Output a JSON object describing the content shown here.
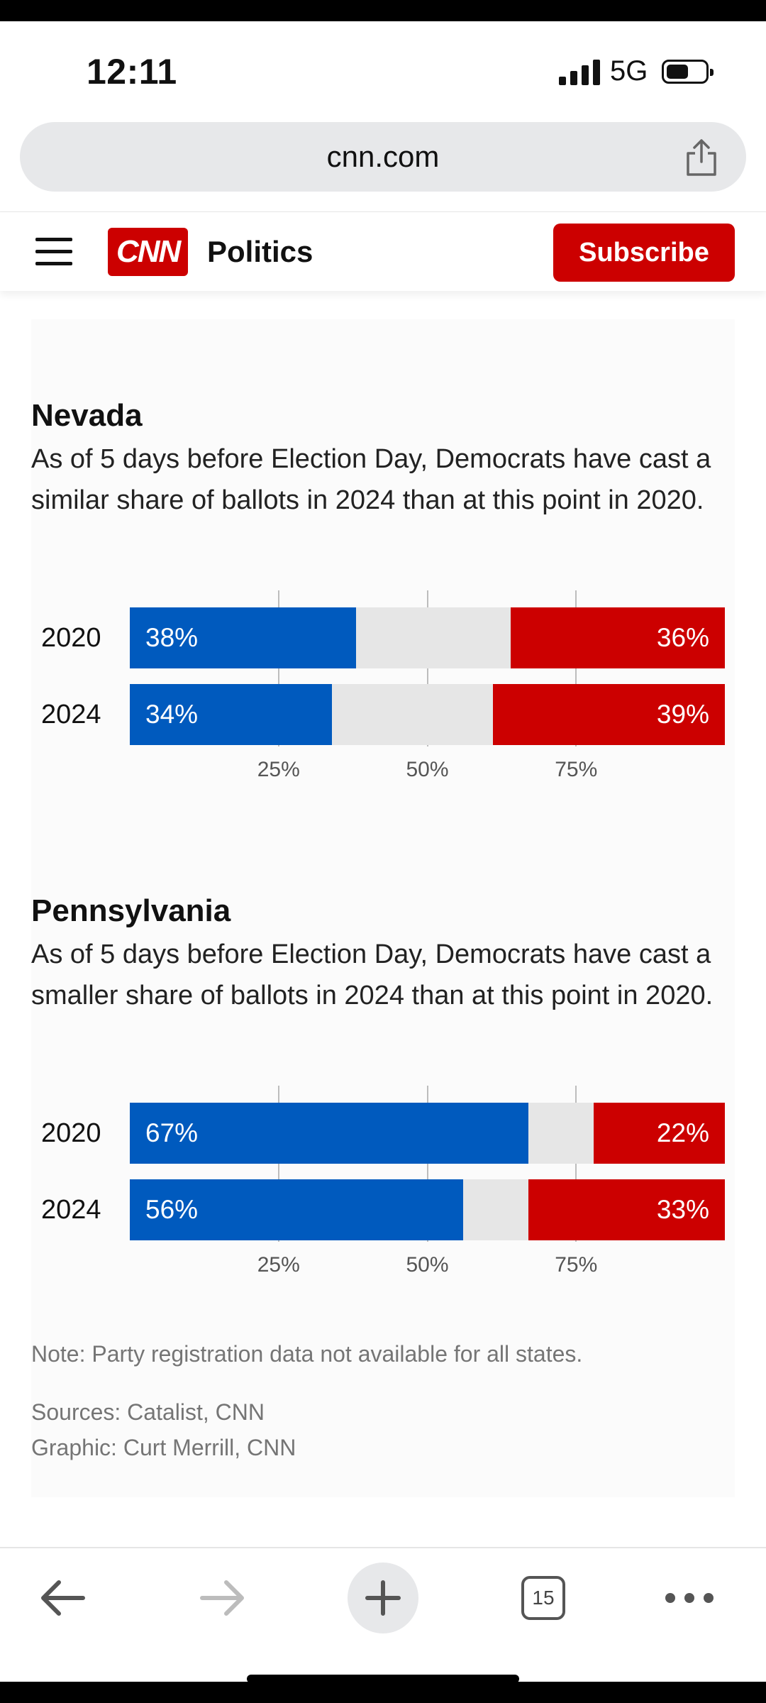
{
  "status_bar": {
    "time": "12:11",
    "network": "5G"
  },
  "browser": {
    "url": "cnn.com",
    "tab_count": "15"
  },
  "header": {
    "logo_text": "CNN",
    "section": "Politics",
    "subscribe_label": "Subscribe"
  },
  "charts_meta": {
    "nevada": {
      "title": "Nevada",
      "subtitle": "As of 5 days before Election Day, Democrats have cast a similar share of ballots in 2024 than at this point in 2020."
    },
    "pennsylvania": {
      "title": "Pennsylvania",
      "subtitle": "As of 5 days before Election Day, Democrats have cast a smaller share of ballots in 2024 than at this point in 2020."
    }
  },
  "chart_data": [
    {
      "type": "bar",
      "stacked": true,
      "orientation": "horizontal",
      "title": "Nevada",
      "categories": [
        "2020",
        "2024"
      ],
      "series": [
        {
          "values": [
            38,
            34
          ],
          "color": "#005abe",
          "labels": [
            "38%",
            "34%"
          ]
        },
        {
          "values": [
            26,
            27
          ],
          "color": "#e6e6e6"
        },
        {
          "values": [
            36,
            39
          ],
          "color": "#cc0000",
          "labels": [
            "36%",
            "39%"
          ]
        }
      ],
      "xticks": [
        "25%",
        "50%",
        "75%"
      ],
      "xlim": [
        0,
        100
      ]
    },
    {
      "type": "bar",
      "stacked": true,
      "orientation": "horizontal",
      "title": "Pennsylvania",
      "categories": [
        "2020",
        "2024"
      ],
      "series": [
        {
          "values": [
            67,
            56
          ],
          "color": "#005abe",
          "labels": [
            "67%",
            "56%"
          ]
        },
        {
          "values": [
            11,
            11
          ],
          "color": "#e6e6e6"
        },
        {
          "values": [
            22,
            33
          ],
          "color": "#cc0000",
          "labels": [
            "22%",
            "33%"
          ]
        }
      ],
      "xticks": [
        "25%",
        "50%",
        "75%"
      ],
      "xlim": [
        0,
        100
      ]
    }
  ],
  "footer": {
    "note": "Note: Party registration data not available for all states.",
    "sources": "Sources: Catalist, CNN",
    "graphic": "Graphic: Curt Merrill, CNN"
  },
  "toolbar_icons": [
    "back-arrow-icon",
    "forward-arrow-icon",
    "plus-icon",
    "tabs-icon",
    "more-icon"
  ]
}
